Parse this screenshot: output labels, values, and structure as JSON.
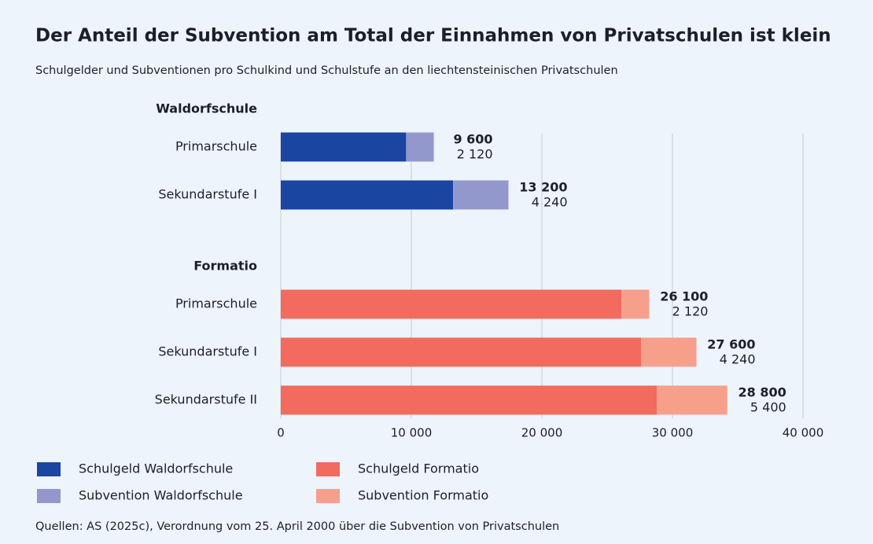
{
  "chart_data": {
    "type": "bar",
    "orientation": "horizontal",
    "stacked": true,
    "title": "Der Anteil der Subvention am Total der Einnahmen von Privatschulen ist klein",
    "subtitle": "Schulgelder und Subventionen pro Schulkind und Schulstufe an den liechtensteinischen Privatschulen",
    "source": "Quellen: AS (2025c), Verordnung vom 25. April 2000 über die Subvention von Privatschulen",
    "xlim": [
      0,
      40000
    ],
    "xticks": [
      0,
      {
        "value": 10000,
        "label": "10 000"
      },
      {
        "value": 20000,
        "label": "20 000"
      },
      {
        "value": 30000,
        "label": "30 000"
      },
      {
        "value": 40000,
        "label": "40 000"
      }
    ],
    "grid": true,
    "groups": [
      {
        "name": "Waldorfschule",
        "categories": [
          "Primarschule",
          "Sekundarstufe I"
        ],
        "series": [
          {
            "name": "Schulgeld Waldorfschule",
            "color": "#1a45a0",
            "values": [
              9600,
              13200
            ],
            "value_labels": [
              "9 600",
              "13 200"
            ]
          },
          {
            "name": "Subvention Waldorfschule",
            "color": "#9398cc",
            "values": [
              2120,
              4240
            ],
            "value_labels": [
              "2 120",
              "4 240"
            ]
          }
        ]
      },
      {
        "name": "Formatio",
        "categories": [
          "Primarschule",
          "Sekundarstufe I",
          "Sekundarstufe II"
        ],
        "series": [
          {
            "name": "Schulgeld Formatio",
            "color": "#f26b5e",
            "values": [
              26100,
              27600,
              28800
            ],
            "value_labels": [
              "26 100",
              "27 600",
              "28 800"
            ]
          },
          {
            "name": "Subvention Formatio",
            "color": "#f6a08c",
            "values": [
              2120,
              4240,
              5400
            ],
            "value_labels": [
              "2 120",
              "4 240",
              "5 400"
            ]
          }
        ]
      }
    ]
  }
}
